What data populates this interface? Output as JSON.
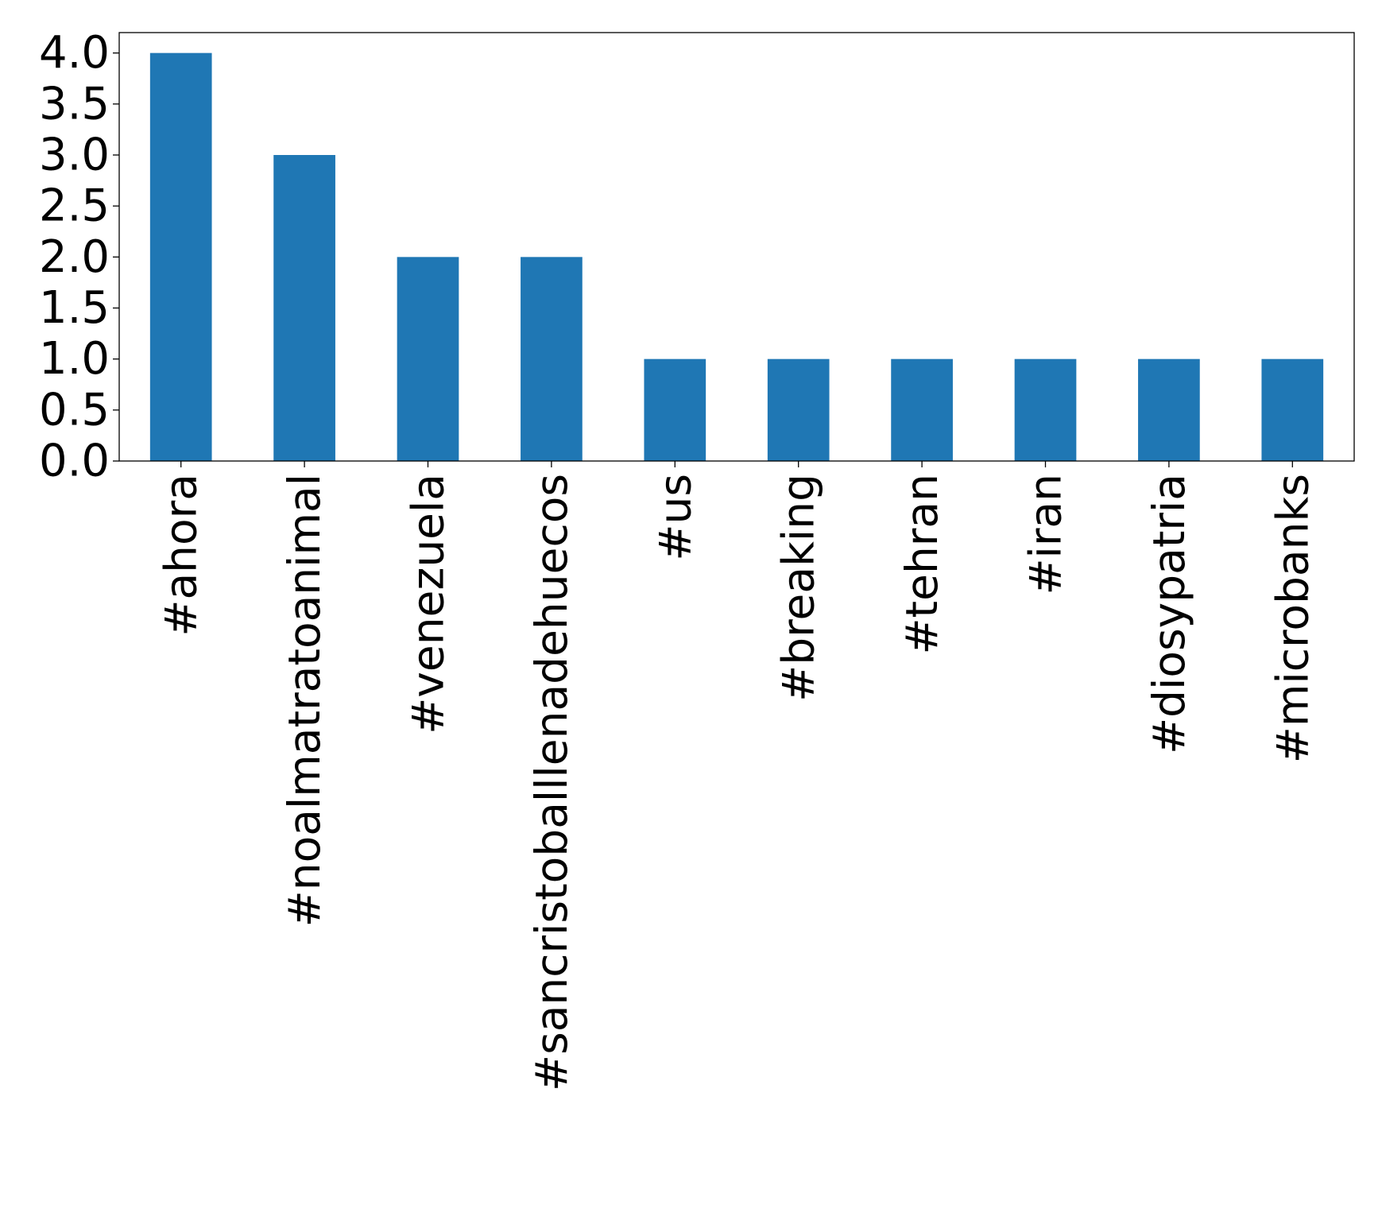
{
  "chart_data": {
    "type": "bar",
    "categories": [
      "#ahora",
      "#noalmatratoanimal",
      "#venezuela",
      "#sancristoballlenadehuecos",
      "#us",
      "#breaking",
      "#tehran",
      "#iran",
      "#diosypatria",
      "#microbanks"
    ],
    "values": [
      4,
      3,
      2,
      2,
      1,
      1,
      1,
      1,
      1,
      1
    ],
    "ylim": [
      0,
      4.2
    ],
    "yticks": [
      "0.0",
      "0.5",
      "1.0",
      "1.5",
      "2.0",
      "2.5",
      "3.0",
      "3.5",
      "4.0"
    ],
    "bar_color": "#1f77b4",
    "grid": false,
    "legend": "none",
    "title": "",
    "xlabel": "",
    "ylabel": ""
  }
}
